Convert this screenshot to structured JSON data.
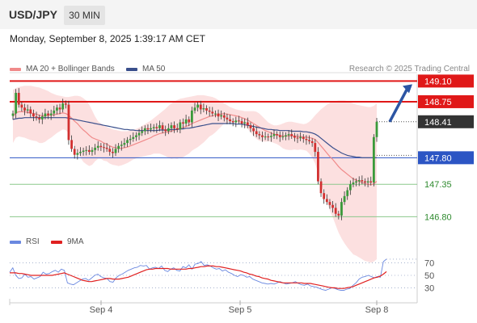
{
  "header": {
    "pair": "USD/JPY",
    "timeframe": "30 MIN"
  },
  "timestamp": "Monday, September 8, 2025 1:39:17 AM CET",
  "credit": "Research © 2025 Trading Central",
  "colors": {
    "bull": "#3a9a3a",
    "bear": "#d23030",
    "resistance": "#e01818",
    "support_line": "#2c55c4",
    "support_green": "#8cc88c",
    "ma20": "#f08a8a",
    "ma50": "#3a4f8c",
    "band": "#fbd6d6",
    "rsi": "#6a88e0",
    "rsi_ma": "#e02020"
  },
  "chart_data": [
    {
      "type": "candlestick",
      "title": "",
      "x_ticks": [
        "Sep 4",
        "Sep 5",
        "Sep 8"
      ],
      "ylim": [
        146.6,
        149.16
      ],
      "legend": [
        {
          "name": "MA 20 + Bollinger Bands",
          "color": "#f08a8a"
        },
        {
          "name": "MA 50",
          "color": "#3a4f8c"
        }
      ],
      "levels": [
        {
          "value": 149.1,
          "label": "149.10",
          "kind": "resistance"
        },
        {
          "value": 148.75,
          "label": "148.75",
          "kind": "resistance"
        },
        {
          "value": 148.41,
          "label": "148.41",
          "kind": "current"
        },
        {
          "value": 147.8,
          "label": "147.80",
          "kind": "support_blue"
        },
        {
          "value": 147.35,
          "label": "147.35",
          "kind": "support_green"
        },
        {
          "value": 146.8,
          "label": "146.80",
          "kind": "support_green"
        }
      ],
      "close": [
        148.55,
        148.9,
        148.7,
        148.65,
        148.6,
        148.62,
        148.55,
        148.5,
        148.48,
        148.45,
        148.5,
        148.55,
        148.52,
        148.55,
        148.6,
        148.65,
        148.62,
        148.72,
        148.7,
        148.1,
        147.95,
        147.85,
        147.88,
        147.9,
        147.92,
        147.93,
        147.9,
        147.93,
        147.97,
        148.0,
        147.98,
        147.97,
        147.95,
        147.9,
        147.88,
        147.95,
        148.0,
        148.02,
        148.05,
        148.1,
        148.12,
        148.15,
        148.18,
        148.22,
        148.25,
        148.3,
        148.28,
        148.3,
        148.32,
        148.3,
        148.35,
        148.28,
        148.25,
        148.3,
        148.35,
        148.3,
        148.28,
        148.4,
        148.38,
        148.45,
        148.4,
        148.6,
        148.65,
        148.7,
        148.62,
        148.64,
        148.6,
        148.58,
        148.55,
        148.55,
        148.5,
        148.52,
        148.48,
        148.45,
        148.42,
        148.4,
        148.43,
        148.42,
        148.38,
        148.4,
        148.35,
        148.3,
        148.25,
        148.2,
        148.18,
        148.15,
        148.16,
        148.15,
        148.17,
        148.2,
        148.18,
        148.15,
        148.16,
        148.18,
        148.2,
        148.17,
        148.14,
        148.13,
        148.15,
        148.12,
        148.1,
        148.08,
        148.05,
        147.9,
        147.4,
        147.2,
        147.1,
        147.05,
        147.0,
        146.95,
        146.85,
        146.82,
        147.05,
        147.15,
        147.25,
        147.35,
        147.38,
        147.4,
        147.42,
        147.4,
        147.38,
        147.4,
        147.38,
        148.15,
        148.41
      ],
      "ma20": [
        148.5,
        148.56,
        148.58,
        148.58,
        148.58,
        148.57,
        148.56,
        148.55,
        148.54,
        148.52,
        148.51,
        148.51,
        148.52,
        148.52,
        148.53,
        148.54,
        148.55,
        148.56,
        148.55,
        148.52,
        148.47,
        148.42,
        148.38,
        148.32,
        148.27,
        148.23,
        148.18,
        148.14,
        148.12,
        148.1,
        148.08,
        148.05,
        148.03,
        148.0,
        147.98,
        147.97,
        147.96,
        147.96,
        147.97,
        147.98,
        148.0,
        148.02,
        148.04,
        148.06,
        148.08,
        148.1,
        148.12,
        148.14,
        148.17,
        148.19,
        148.21,
        148.22,
        148.23,
        148.24,
        148.25,
        148.27,
        148.28,
        148.3,
        148.31,
        148.33,
        148.35,
        148.38,
        148.4,
        148.42,
        148.44,
        148.46,
        148.48,
        148.5,
        148.51,
        148.52,
        148.53,
        148.54,
        148.55,
        148.54,
        148.53,
        148.52,
        148.51,
        148.5,
        148.48,
        148.46,
        148.44,
        148.41,
        148.38,
        148.35,
        148.32,
        148.29,
        148.26,
        148.24,
        148.22,
        148.2,
        148.19,
        148.18,
        148.17,
        148.17,
        148.17,
        148.17,
        148.17,
        148.16,
        148.16,
        148.15,
        148.15,
        148.14,
        148.13,
        148.11,
        148.06,
        148.0,
        147.94,
        147.88,
        147.82,
        147.77,
        147.71,
        147.65,
        147.6,
        147.56,
        147.52,
        147.48,
        147.44,
        147.42,
        147.4,
        147.38,
        147.36,
        147.35,
        147.34,
        147.36,
        147.4
      ],
      "bb_upper": [
        148.95,
        148.98,
        149.0,
        149.01,
        149.02,
        149.02,
        149.02,
        149.01,
        149.0,
        148.99,
        148.97,
        148.95,
        148.93,
        148.9,
        148.88,
        148.86,
        148.85,
        148.84,
        148.83,
        148.83,
        148.84,
        148.85,
        148.85,
        148.84,
        148.81,
        148.77,
        148.7,
        148.6,
        148.5,
        148.42,
        148.38,
        148.35,
        148.32,
        148.3,
        148.28,
        148.27,
        148.26,
        148.25,
        148.25,
        148.25,
        148.26,
        148.27,
        148.29,
        148.31,
        148.34,
        148.37,
        148.4,
        148.43,
        148.47,
        148.51,
        148.55,
        148.59,
        148.63,
        148.68,
        148.72,
        148.75,
        148.78,
        148.8,
        148.81,
        148.82,
        148.83,
        148.84,
        148.85,
        148.86,
        148.86,
        148.86,
        148.85,
        148.84,
        148.83,
        148.81,
        148.78,
        148.75,
        148.72,
        148.69,
        148.66,
        148.64,
        148.62,
        148.61,
        148.6,
        148.59,
        148.59,
        148.59,
        148.59,
        148.58,
        148.55,
        148.5,
        148.45,
        148.4,
        148.37,
        148.35,
        148.35,
        148.36,
        148.38,
        148.4,
        148.41,
        148.41,
        148.4,
        148.39,
        148.38,
        148.37,
        148.38,
        148.41,
        148.46,
        148.52,
        148.57,
        148.62,
        148.66,
        148.7,
        148.73,
        148.75,
        148.76,
        148.77,
        148.77,
        148.77,
        148.76,
        148.74,
        148.72,
        148.7,
        148.69,
        148.68,
        148.67,
        148.66,
        148.66,
        148.68,
        148.72
      ],
      "bb_lower": [
        148.05,
        148.14,
        148.16,
        148.15,
        148.14,
        148.12,
        148.1,
        148.09,
        148.08,
        148.05,
        148.05,
        148.07,
        148.11,
        148.14,
        148.18,
        148.22,
        148.25,
        148.28,
        148.27,
        148.21,
        148.1,
        147.99,
        147.91,
        147.8,
        147.73,
        147.69,
        147.66,
        147.68,
        147.74,
        147.78,
        147.78,
        147.75,
        147.74,
        147.7,
        147.68,
        147.67,
        147.66,
        147.67,
        147.69,
        147.71,
        147.74,
        147.77,
        147.79,
        147.81,
        147.82,
        147.83,
        147.84,
        147.85,
        147.87,
        147.87,
        147.87,
        147.85,
        147.83,
        147.8,
        147.78,
        147.79,
        147.78,
        147.8,
        147.81,
        147.84,
        147.87,
        147.92,
        147.95,
        147.98,
        148.02,
        148.06,
        148.11,
        148.16,
        148.19,
        148.23,
        148.28,
        148.33,
        148.38,
        148.39,
        148.4,
        148.4,
        148.4,
        148.39,
        148.36,
        148.33,
        148.29,
        148.23,
        148.17,
        148.12,
        148.09,
        148.08,
        148.07,
        148.08,
        148.07,
        148.05,
        148.03,
        148.0,
        147.96,
        147.94,
        147.93,
        147.93,
        147.94,
        147.93,
        147.94,
        147.93,
        147.92,
        147.87,
        147.8,
        147.7,
        147.55,
        147.38,
        147.22,
        147.06,
        146.91,
        146.79,
        146.66,
        146.53,
        146.43,
        146.35,
        146.28,
        146.22,
        146.16,
        146.14,
        146.11,
        146.08,
        146.05,
        146.04,
        146.02,
        146.04,
        146.08
      ],
      "ma50": [
        148.45,
        148.46,
        148.47,
        148.47,
        148.48,
        148.48,
        148.48,
        148.48,
        148.48,
        148.48,
        148.48,
        148.48,
        148.48,
        148.48,
        148.48,
        148.48,
        148.48,
        148.48,
        148.48,
        148.47,
        148.46,
        148.45,
        148.44,
        148.43,
        148.42,
        148.41,
        148.4,
        148.39,
        148.38,
        148.37,
        148.36,
        148.35,
        148.34,
        148.33,
        148.32,
        148.31,
        148.3,
        148.29,
        148.28,
        148.28,
        148.27,
        148.27,
        148.26,
        148.26,
        148.26,
        148.26,
        148.26,
        148.26,
        148.26,
        148.26,
        148.27,
        148.27,
        148.27,
        148.27,
        148.28,
        148.28,
        148.28,
        148.29,
        148.29,
        148.3,
        148.3,
        148.31,
        148.32,
        148.33,
        148.34,
        148.35,
        148.36,
        148.37,
        148.38,
        148.38,
        148.38,
        148.38,
        148.38,
        148.38,
        148.38,
        148.38,
        148.37,
        148.37,
        148.37,
        148.36,
        148.35,
        148.34,
        148.33,
        148.32,
        148.31,
        148.3,
        148.29,
        148.28,
        148.28,
        148.27,
        148.27,
        148.26,
        148.26,
        148.26,
        148.26,
        148.25,
        148.25,
        148.25,
        148.25,
        148.24,
        148.24,
        148.23,
        148.22,
        148.2,
        148.17,
        148.13,
        148.09,
        148.05,
        148.01,
        147.97,
        147.94,
        147.91,
        147.88,
        147.86,
        147.84,
        147.83,
        147.82,
        147.81,
        147.81,
        147.8,
        147.8,
        147.8,
        147.8,
        147.8,
        147.8
      ],
      "forecast_close": 149.1
    },
    {
      "type": "line",
      "title": "",
      "legend": [
        {
          "name": "RSI",
          "color": "#6a88e0"
        },
        {
          "name": "9MA",
          "color": "#e02020"
        }
      ],
      "ylim": [
        15,
        85
      ],
      "y_ticks": [
        70,
        50,
        30
      ],
      "series": [
        {
          "name": "RSI",
          "values": [
            55,
            62,
            50,
            45,
            46,
            52,
            47,
            48,
            44,
            46,
            48,
            55,
            52,
            53,
            56,
            58,
            55,
            60,
            58,
            38,
            36,
            35,
            38,
            41,
            44,
            45,
            42,
            46,
            50,
            52,
            48,
            46,
            45,
            40,
            39,
            46,
            50,
            52,
            55,
            58,
            60,
            62,
            63,
            66,
            65,
            66,
            60,
            62,
            63,
            61,
            65,
            58,
            56,
            60,
            62,
            58,
            57,
            64,
            62,
            67,
            60,
            68,
            69,
            72,
            66,
            67,
            65,
            62,
            60,
            61,
            57,
            59,
            55,
            53,
            50,
            48,
            51,
            50,
            47,
            48,
            44,
            42,
            40,
            38,
            37,
            36,
            37,
            36,
            38,
            40,
            38,
            36,
            37,
            38,
            40,
            37,
            35,
            34,
            36,
            33,
            32,
            31,
            29,
            27,
            26,
            28,
            30,
            29,
            27,
            26,
            26,
            28,
            29,
            34,
            38,
            44,
            47,
            48,
            50,
            48,
            46,
            48,
            47,
            72,
            76
          ]
        },
        {
          "name": "9MA",
          "values": [
            54,
            54,
            54,
            53,
            53,
            52,
            51,
            50,
            50,
            50,
            50,
            50,
            50,
            50,
            50,
            51,
            52,
            53,
            54,
            52,
            50,
            48,
            46,
            44,
            42,
            41,
            40,
            40,
            41,
            42,
            43,
            44,
            45,
            45,
            44,
            44,
            44,
            45,
            46,
            47,
            49,
            51,
            53,
            55,
            57,
            59,
            60,
            60,
            61,
            61,
            61,
            61,
            61,
            60,
            60,
            60,
            60,
            60,
            60,
            61,
            61,
            62,
            63,
            64,
            64,
            65,
            65,
            65,
            64,
            64,
            63,
            62,
            61,
            60,
            59,
            58,
            57,
            55,
            54,
            52,
            51,
            49,
            48,
            46,
            45,
            44,
            42,
            41,
            40,
            39,
            38,
            38,
            38,
            38,
            38,
            38,
            38,
            37,
            37,
            37,
            36,
            35,
            34,
            33,
            32,
            31,
            30,
            30,
            29,
            29,
            29,
            30,
            31,
            32,
            34,
            36,
            38,
            40,
            42,
            44,
            46,
            47,
            49,
            52,
            56
          ]
        }
      ]
    }
  ]
}
